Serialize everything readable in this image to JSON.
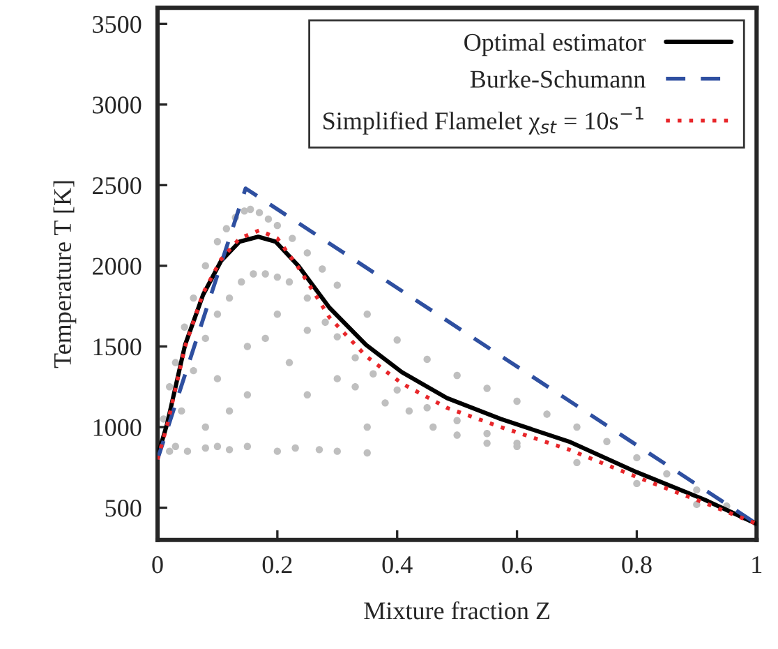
{
  "chart_data": {
    "type": "line",
    "xlabel": "Mixture fraction Z",
    "ylabel": "Temperature T [K]",
    "xlim": [
      0,
      1
    ],
    "xticks": [
      0,
      0.2,
      0.4,
      0.6,
      0.8,
      1
    ],
    "ylim": [
      300,
      3600
    ],
    "yticks": [
      500,
      1000,
      1500,
      2000,
      2500,
      3000,
      3500
    ],
    "grid": false,
    "legend": "top right",
    "series": [
      {
        "type": "scatter",
        "color": "#bfbfbf",
        "marker": "circle",
        "x": [
          0.01,
          0.02,
          0.03,
          0.045,
          0.06,
          0.08,
          0.1,
          0.115,
          0.13,
          0.145,
          0.155,
          0.17,
          0.185,
          0.2,
          0.225,
          0.25,
          0.275,
          0.3,
          0.35,
          0.4,
          0.45,
          0.5,
          0.55,
          0.6,
          0.65,
          0.7,
          0.75,
          0.8,
          0.85,
          0.9,
          0.95,
          1,
          0.02,
          0.04,
          0.06,
          0.08,
          0.1,
          0.12,
          0.14,
          0.16,
          0.18,
          0.2,
          0.22,
          0.25,
          0.28,
          0.3,
          0.33,
          0.36,
          0.4,
          0.45,
          0.5,
          0.55,
          0.6,
          0.7,
          0.8,
          0.9,
          0.03,
          0.05,
          0.08,
          0.1,
          0.12,
          0.15,
          0.2,
          0.23,
          0.27,
          0.3,
          0.35,
          0.08,
          0.12,
          0.15,
          0.18,
          0.22,
          0.25,
          0.3,
          0.33,
          0.38,
          0.42,
          0.46,
          0.5,
          0.55,
          0.6,
          0.25,
          0.2,
          0.15,
          0.35,
          0.1
        ],
        "values": [
          1050,
          1250,
          1400,
          1620,
          1800,
          2000,
          2150,
          2230,
          2300,
          2340,
          2350,
          2330,
          2290,
          2250,
          2170,
          2080,
          1980,
          1880,
          1700,
          1540,
          1420,
          1320,
          1240,
          1160,
          1080,
          1000,
          910,
          810,
          710,
          610,
          510,
          400,
          850,
          1100,
          1350,
          1550,
          1700,
          1800,
          1900,
          1950,
          1950,
          1930,
          1900,
          1800,
          1650,
          1560,
          1430,
          1330,
          1230,
          1120,
          1040,
          960,
          900,
          780,
          650,
          520,
          880,
          850,
          870,
          880,
          860,
          880,
          850,
          870,
          860,
          850,
          840,
          1000,
          1100,
          1200,
          1550,
          1400,
          1600,
          1300,
          1250,
          1150,
          1100,
          1000,
          950,
          900,
          880,
          1200,
          1700,
          1500,
          1000,
          1300
        ]
      },
      {
        "name": "Optimal estimator",
        "color": "#000000",
        "line_style": "solid",
        "x": [
          0,
          0.016,
          0.046,
          0.076,
          0.106,
          0.137,
          0.168,
          0.197,
          0.235,
          0.287,
          0.348,
          0.408,
          0.483,
          0.573,
          0.687,
          0.8,
          0.913,
          1
        ],
        "values": [
          820,
          1020,
          1510,
          1820,
          2030,
          2150,
          2180,
          2150,
          2000,
          1740,
          1510,
          1340,
          1180,
          1050,
          910,
          720,
          550,
          400
        ]
      },
      {
        "name": "Burke-Schumann",
        "color": "#2e4fa0",
        "line_style": "dashed",
        "x": [
          0,
          0.147,
          1
        ],
        "values": [
          800,
          2480,
          400
        ]
      },
      {
        "name": "Simplified Flamelet χ$_{st}$ = 10s$^{−1}$",
        "color": "#e8262a",
        "line_style": "dotted",
        "x": [
          0,
          0.016,
          0.046,
          0.076,
          0.106,
          0.137,
          0.17,
          0.2,
          0.235,
          0.287,
          0.348,
          0.408,
          0.483,
          0.573,
          0.687,
          0.8,
          0.913,
          1
        ],
        "values": [
          800,
          1010,
          1500,
          1830,
          2040,
          2170,
          2220,
          2170,
          1990,
          1680,
          1440,
          1270,
          1120,
          1000,
          860,
          690,
          530,
          400
        ]
      }
    ]
  }
}
